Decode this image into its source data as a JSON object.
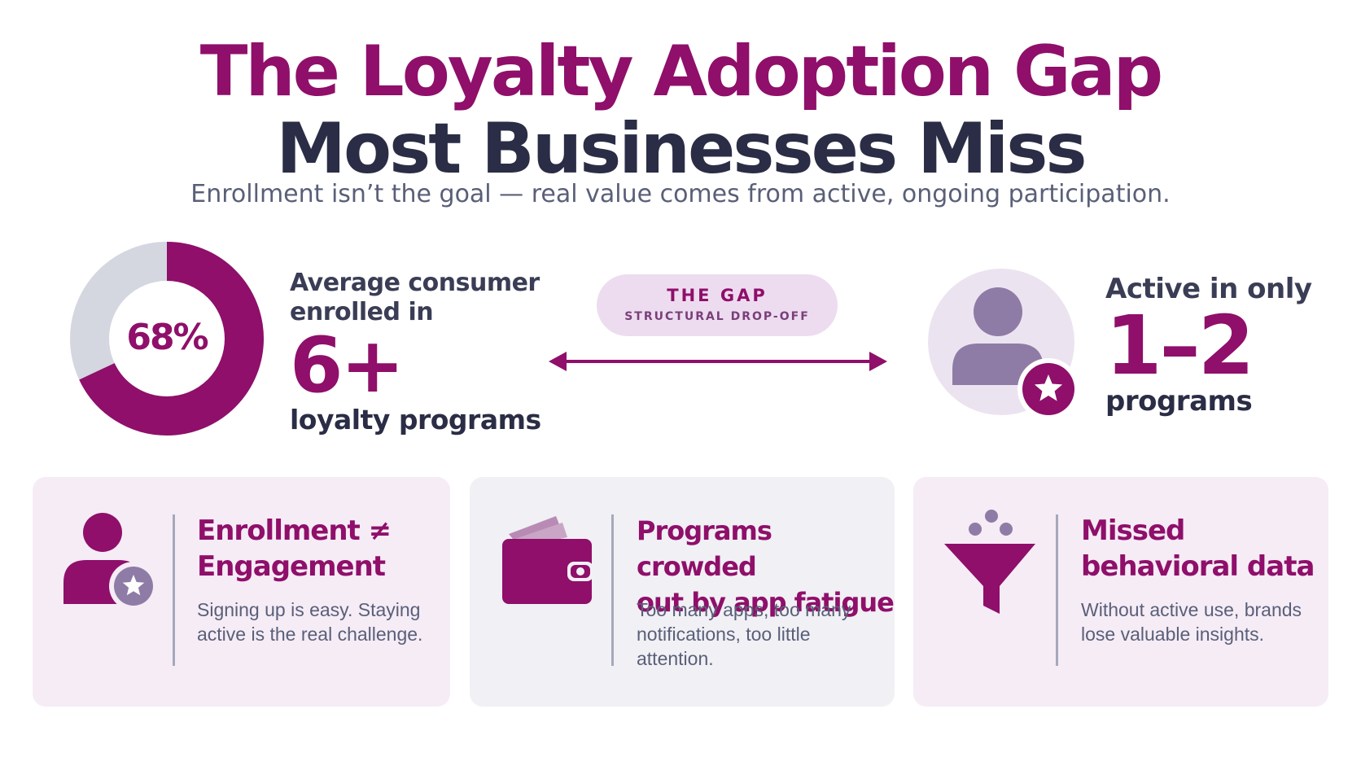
{
  "header": {
    "title_line1": "The Loyalty Adoption Gap",
    "title_line2": "Most Businesses Miss",
    "subtitle": "Enrollment isn’t the goal — real value comes from active, ongoing participation."
  },
  "enrolled": {
    "donut_label": "68%",
    "donut_fraction": 0.68,
    "line1": "Average consumer",
    "line2": "enrolled in",
    "big_value": "6+",
    "bottom": "loyalty programs"
  },
  "gap": {
    "title": "THE GAP",
    "subtitle": "STRUCTURAL DROP-OFF"
  },
  "active": {
    "top": "Active in only",
    "big_value": "1–2",
    "bottom": "programs"
  },
  "cards": [
    {
      "icon": "user-star-icon",
      "title_line1": "Enrollment ≠",
      "title_line2": "Engagement",
      "body": "Signing up is easy. Staying active is the real challenge."
    },
    {
      "icon": "wallet-icon",
      "title_line1": "Programs crowded",
      "title_line2": "out by app fatigue",
      "body": "Too many apps, too many notifications, too little attention."
    },
    {
      "icon": "funnel-icon",
      "title_line1": "Missed",
      "title_line2": "behavioral data",
      "body": "Without active use, brands lose valuable insights."
    }
  ],
  "colors": {
    "brand_magenta": "#8f0f6a",
    "dark_navy": "#2a2d45",
    "light_gray": "#d4d6e0",
    "lavender": "#eddcf0",
    "muted_purple": "#8e7ca6"
  }
}
